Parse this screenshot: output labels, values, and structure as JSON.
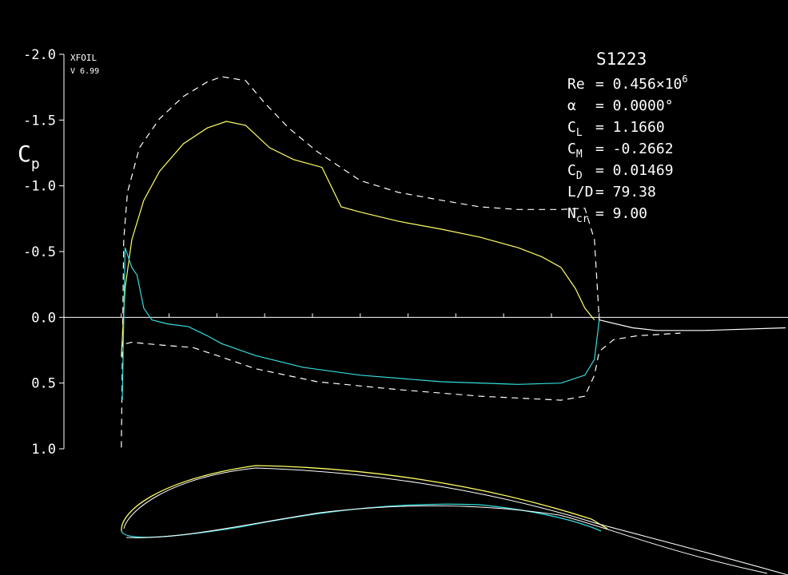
{
  "chart_data": {
    "type": "line",
    "program": "XFOIL",
    "version": "V 6.99",
    "title": "S1223",
    "y_label": {
      "main": "C",
      "sub": "p"
    },
    "params": [
      {
        "label": "Re",
        "value": "= 0.456×10",
        "sup": "6"
      },
      {
        "label": "α",
        "value": "= 0.0000°"
      },
      {
        "label": "C",
        "sub": "L",
        "value": "= 1.1660"
      },
      {
        "label": "C",
        "sub": "M",
        "value": "= -0.2662"
      },
      {
        "label": "C",
        "sub": "D",
        "value": "= 0.01469"
      },
      {
        "label": "L/D",
        "value": "= 79.38"
      },
      {
        "label": "N",
        "sub": "cr",
        "value": "= 9.00"
      }
    ],
    "ylim": [
      -2.0,
      1.0
    ],
    "y_inverted": true,
    "yticks": [
      {
        "value": -2,
        "label": "-2.0"
      },
      -1.5,
      {
        "value": -1,
        "label": "-1.0"
      },
      -0.5,
      {
        "value": 0,
        "label": "0.0"
      },
      0.5,
      {
        "value": 1,
        "label": "1.0"
      }
    ],
    "xlim": [
      -0.12,
      1.4
    ],
    "xticks": [
      0,
      0.1,
      0.2,
      0.3,
      0.4,
      0.5,
      0.6,
      0.7,
      0.8,
      0.9,
      1.0
    ],
    "series": [
      {
        "color": "#ffffff",
        "dashed": true,
        "x": [
          0,
          0.005,
          0.013,
          0.038,
          0.08,
          0.13,
          0.18,
          0.21,
          0.26,
          0.3,
          0.35,
          0.41,
          0.5,
          0.58,
          0.67,
          0.75,
          0.83,
          0.92,
          0.97,
          0.99,
          1.0
        ],
        "values": [
          0.99,
          -0.59,
          -0.95,
          -1.29,
          -1.51,
          -1.68,
          -1.79,
          -1.83,
          -1.8,
          -1.63,
          -1.44,
          -1.26,
          -1.04,
          -0.95,
          -0.89,
          -0.84,
          -0.82,
          -0.82,
          -0.83,
          -0.59,
          0.02
        ]
      },
      {
        "color": "#ffffff",
        "dashed": true,
        "x": [
          0.01,
          0.022,
          0.08,
          0.15,
          0.2,
          0.28,
          0.41,
          0.58,
          0.75,
          0.92,
          0.97,
          0.99,
          1.0,
          1.03,
          1.08,
          1.17
        ],
        "values": [
          0.2,
          0.19,
          0.21,
          0.23,
          0.29,
          0.39,
          0.49,
          0.55,
          0.6,
          0.63,
          0.6,
          0.44,
          0.26,
          0.17,
          0.14,
          0.12
        ]
      },
      {
        "color": "#ffff66",
        "dashed": false,
        "x": [
          0.0,
          0.008,
          0.022,
          0.047,
          0.08,
          0.13,
          0.18,
          0.22,
          0.26,
          0.31,
          0.36,
          0.42,
          0.46,
          0.5,
          0.58,
          0.67,
          0.75,
          0.83,
          0.88,
          0.92,
          0.95,
          0.97,
          0.99
        ],
        "values": [
          0.3,
          -0.22,
          -0.59,
          -0.89,
          -1.11,
          -1.32,
          -1.44,
          -1.49,
          -1.46,
          -1.29,
          -1.2,
          -1.14,
          -0.84,
          -0.8,
          -0.73,
          -0.67,
          -0.61,
          -0.53,
          -0.46,
          -0.38,
          -0.22,
          -0.07,
          0.02
        ]
      },
      {
        "color": "#33dddd",
        "dashed": false,
        "x": [
          0.002,
          0.008,
          0.022,
          0.033,
          0.047,
          0.064,
          0.097,
          0.14,
          0.18,
          0.21,
          0.28,
          0.38,
          0.5,
          0.67,
          0.83,
          0.92,
          0.97,
          0.99,
          1.0
        ],
        "values": [
          0.63,
          -0.53,
          -0.38,
          -0.32,
          -0.07,
          0.02,
          0.05,
          0.07,
          0.14,
          0.2,
          0.29,
          0.38,
          0.44,
          0.49,
          0.51,
          0.5,
          0.44,
          0.32,
          0.02
        ]
      },
      {
        "color": "#ffffff",
        "dashed": false,
        "x": [
          1.0,
          1.07,
          1.12,
          1.22,
          1.39
        ],
        "values": [
          0.02,
          0.08,
          0.1,
          0.1,
          0.08
        ]
      }
    ]
  }
}
